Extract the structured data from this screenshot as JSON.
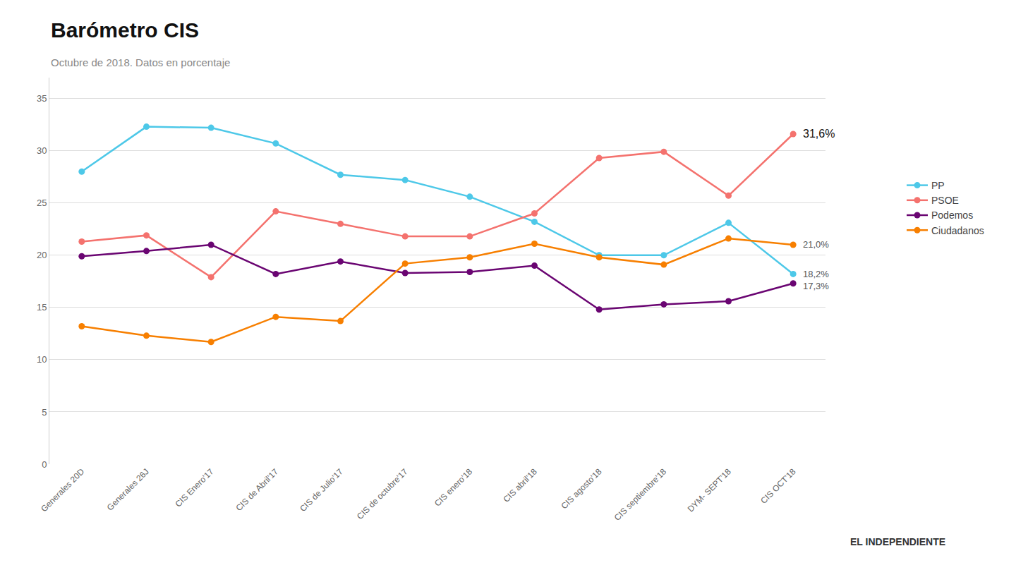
{
  "chart_data": {
    "type": "line",
    "title": "Barómetro CIS",
    "subtitle": "Octubre de 2018. Datos en porcentaje",
    "categories": [
      "Generales 20D",
      "Generales 26J",
      "CIS Enero'17",
      "CIS de Abril'17",
      "CIS de Julio'17",
      "CIS de octubre'17",
      "CIS enero'18",
      "CIS abril'18",
      "CIS agosto'18",
      "CIS septiembre'18",
      "DYM- SEPT'18",
      "CIS OCT'18"
    ],
    "series": [
      {
        "name": "PP",
        "color": "#4dc8e8",
        "marker": "circle",
        "values": [
          28.0,
          32.3,
          32.2,
          30.7,
          27.7,
          27.2,
          25.6,
          23.2,
          20.0,
          20.0,
          23.1,
          18.2
        ],
        "value_labels": [
          null,
          null,
          null,
          null,
          null,
          null,
          null,
          null,
          null,
          null,
          null,
          "18,2%"
        ]
      },
      {
        "name": "PSOE",
        "color": "#f4726e",
        "marker": "circle",
        "values": [
          21.3,
          21.9,
          17.9,
          24.2,
          23.0,
          21.8,
          21.8,
          24.0,
          29.3,
          29.9,
          25.7,
          31.6
        ],
        "value_labels": [
          null,
          null,
          null,
          null,
          null,
          null,
          null,
          null,
          null,
          null,
          null,
          "31,6%"
        ]
      },
      {
        "name": "Podemos",
        "color": "#6a0572",
        "marker": "circle",
        "values": [
          19.9,
          20.4,
          21.0,
          18.2,
          19.4,
          18.3,
          18.4,
          19.0,
          14.8,
          15.3,
          15.6,
          17.3
        ],
        "value_labels": [
          null,
          null,
          null,
          null,
          null,
          null,
          null,
          null,
          null,
          null,
          null,
          "17,3%"
        ]
      },
      {
        "name": "Ciudadanos",
        "color": "#f77f00",
        "marker": "circle",
        "values": [
          13.2,
          12.3,
          11.7,
          14.1,
          13.7,
          19.2,
          19.8,
          21.1,
          19.8,
          19.1,
          21.6,
          21.0
        ],
        "value_labels": [
          null,
          null,
          null,
          null,
          null,
          null,
          null,
          null,
          null,
          null,
          null,
          "21,0%"
        ]
      }
    ],
    "ylim": [
      0,
      37
    ],
    "yticks": [
      0,
      5,
      10,
      15,
      20,
      25,
      30,
      35
    ],
    "grid": true,
    "annotations": [
      "EL INDEPENDIENTE"
    ]
  }
}
